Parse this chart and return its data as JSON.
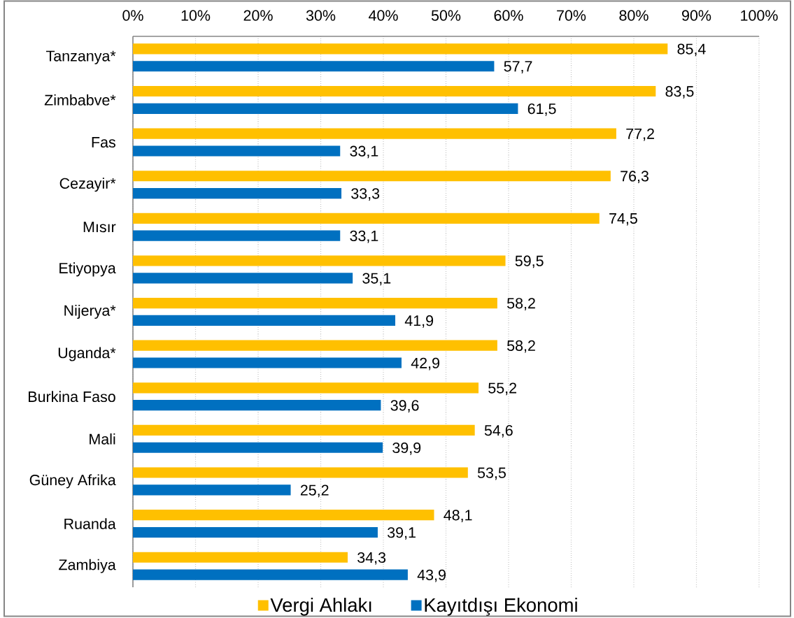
{
  "chart_data": {
    "type": "bar",
    "orientation": "horizontal",
    "categories": [
      "Tanzanya*",
      "Zimbabve*",
      "Fas",
      "Cezayir*",
      "Mısır",
      "Etiyopya",
      "Nijerya*",
      "Uganda*",
      "Burkina Faso",
      "Mali",
      "Güney Afrika",
      "Ruanda",
      "Zambiya"
    ],
    "series": [
      {
        "name": "Vergi Ahlakı",
        "color": "#ffc000",
        "values": [
          85.4,
          83.5,
          77.2,
          76.3,
          74.5,
          59.5,
          58.2,
          58.2,
          55.2,
          54.6,
          53.5,
          48.1,
          34.3
        ],
        "value_labels": [
          "85,4",
          "83,5",
          "77,2",
          "76,3",
          "74,5",
          "59,5",
          "58,2",
          "58,2",
          "55,2",
          "54,6",
          "53,5",
          "48,1",
          "34,3"
        ]
      },
      {
        "name": "Kayıtdışı Ekonomi",
        "color": "#0070c0",
        "values": [
          57.7,
          61.5,
          33.1,
          33.3,
          33.1,
          35.1,
          41.9,
          42.9,
          39.6,
          39.9,
          25.2,
          39.1,
          43.9
        ],
        "value_labels": [
          "57,7",
          "61,5",
          "33,1",
          "33,3",
          "33,1",
          "35,1",
          "41,9",
          "42,9",
          "39,6",
          "39,9",
          "25,2",
          "39,1",
          "43,9"
        ]
      }
    ],
    "xlim": [
      0,
      100
    ],
    "xticks": [
      {
        "value": 0,
        "label": "0%"
      },
      {
        "value": 10,
        "label": "10%"
      },
      {
        "value": 20,
        "label": "20%"
      },
      {
        "value": 30,
        "label": "30%"
      },
      {
        "value": 40,
        "label": "40%"
      },
      {
        "value": 50,
        "label": "50%"
      },
      {
        "value": 60,
        "label": "60%"
      },
      {
        "value": 70,
        "label": "70%"
      },
      {
        "value": 80,
        "label": "80%"
      },
      {
        "value": 90,
        "label": "90%"
      },
      {
        "value": 100,
        "label": "100%"
      }
    ],
    "grid": "x",
    "legend": "bottom"
  }
}
